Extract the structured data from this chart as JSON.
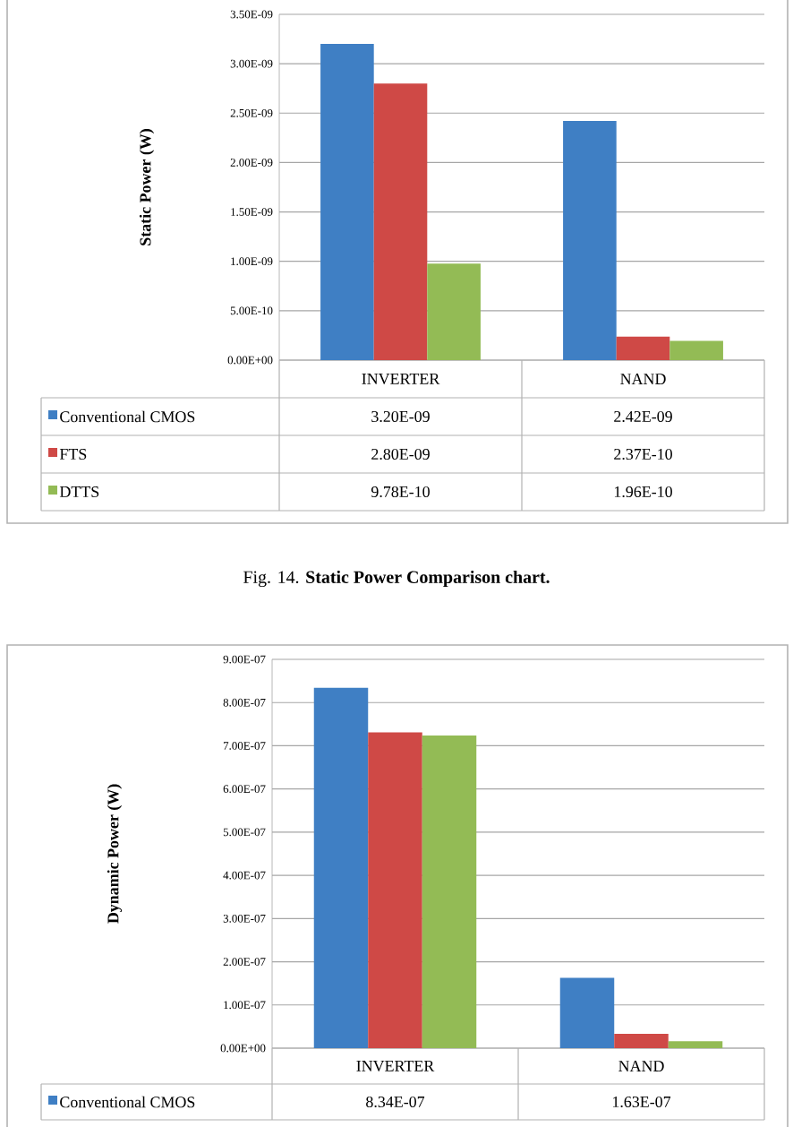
{
  "chart_data": [
    {
      "type": "bar",
      "ylabel": "Static Power (W)",
      "categories": [
        "INVERTER",
        "NAND"
      ],
      "series": [
        {
          "name": "Conventional CMOS",
          "color": "#3f7fc4",
          "values": [
            3.2e-09,
            2.42e-09
          ],
          "value_labels": [
            "3.20E-09",
            "2.42E-09"
          ]
        },
        {
          "name": "FTS",
          "color": "#cf4946",
          "values": [
            2.8e-09,
            2.37e-10
          ],
          "value_labels": [
            "2.80E-09",
            "2.37E-10"
          ]
        },
        {
          "name": "DTTS",
          "color": "#93bb55",
          "values": [
            9.78e-10,
            1.96e-10
          ],
          "value_labels": [
            "9.78E-10",
            "1.96E-10"
          ]
        }
      ],
      "ylim": [
        0,
        3.5e-09
      ],
      "yticks": [
        {
          "value": 0,
          "label": "0.00E+00"
        },
        {
          "value": 5e-10,
          "label": "5.00E-10"
        },
        {
          "value": 1e-09,
          "label": "1.00E-09"
        },
        {
          "value": 1.5e-09,
          "label": "1.50E-09"
        },
        {
          "value": 2e-09,
          "label": "2.00E-09"
        },
        {
          "value": 2.5e-09,
          "label": "2.50E-09"
        },
        {
          "value": 3e-09,
          "label": "3.00E-09"
        },
        {
          "value": 3.5e-09,
          "label": "3.50E-09"
        }
      ],
      "grid": "y",
      "legend": "bottom",
      "annotations": [
        "Fig. 14.  **Static Power Comparison chart.**"
      ]
    },
    {
      "type": "bar",
      "ylabel": "Dynamic Power (W)",
      "categories": [
        "INVERTER",
        "NAND"
      ],
      "series": [
        {
          "name": "Conventional CMOS",
          "color": "#3f7fc4",
          "values": [
            8.34e-07,
            1.63e-07
          ],
          "value_labels": [
            "8.34E-07",
            "1.63E-07"
          ]
        },
        {
          "color": "#cf4946",
          "values": [
            7.31e-07,
            3.3e-08
          ]
        },
        {
          "color": "#93bb55",
          "values": [
            7.24e-07,
            1.6e-08
          ]
        }
      ],
      "ylim": [
        0,
        9e-07
      ],
      "yticks": [
        {
          "value": 0,
          "label": "0.00E+00"
        },
        {
          "value": 1e-07,
          "label": "1.00E-07"
        },
        {
          "value": 2e-07,
          "label": "2.00E-07"
        },
        {
          "value": 3e-07,
          "label": "3.00E-07"
        },
        {
          "value": 4e-07,
          "label": "4.00E-07"
        },
        {
          "value": 5e-07,
          "label": "5.00E-07"
        },
        {
          "value": 6e-07,
          "label": "6.00E-07"
        },
        {
          "value": 7e-07,
          "label": "7.00E-07"
        },
        {
          "value": 8e-07,
          "label": "8.00E-07"
        },
        {
          "value": 9e-07,
          "label": "9.00E-07"
        }
      ],
      "grid": "y",
      "legend": "bottom"
    }
  ]
}
